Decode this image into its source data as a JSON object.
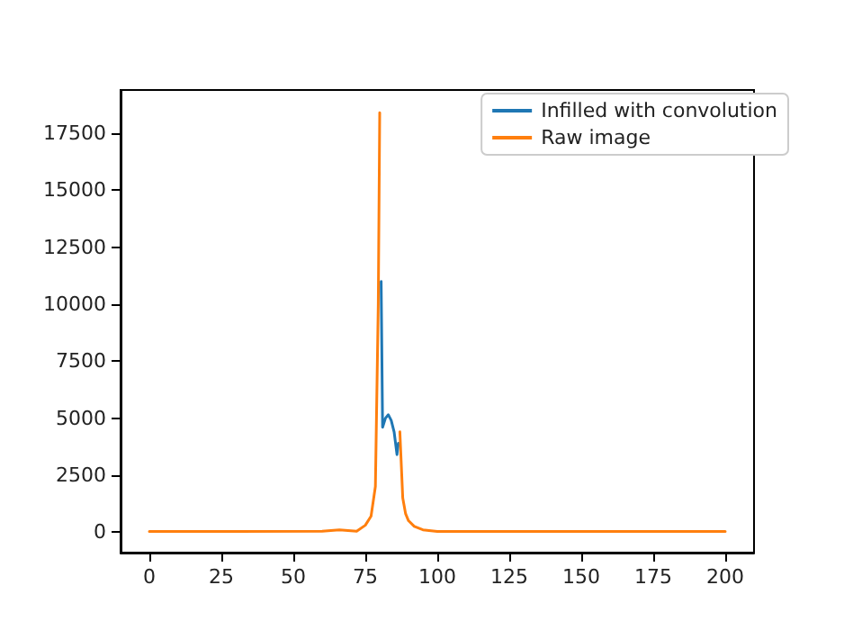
{
  "chart_data": {
    "type": "line",
    "xlim": [
      -10,
      210
    ],
    "ylim": [
      -900,
      19400
    ],
    "xticks": [
      0,
      25,
      50,
      75,
      100,
      125,
      150,
      175,
      200
    ],
    "yticks": [
      0,
      2500,
      5000,
      7500,
      10000,
      12500,
      15000,
      17500
    ],
    "grid": false,
    "legend": "top right",
    "marker": "none",
    "line_style": "solid",
    "series": [
      {
        "name": "Infilled with convolution",
        "color": "#1f77b4",
        "x": [
          80.5,
          81,
          82,
          83,
          84,
          85,
          86,
          86.5
        ],
        "values": [
          11000,
          4600,
          5000,
          5150,
          4900,
          4400,
          3400,
          3900
        ]
      },
      {
        "name": "Raw image",
        "color": "#ff7f0e",
        "x": [
          0,
          30,
          60,
          66,
          72,
          75,
          77,
          78.5,
          79.5,
          80,
          81,
          86,
          87,
          88,
          89,
          90,
          92,
          95,
          100,
          150,
          200
        ],
        "values": [
          30,
          30,
          40,
          100,
          40,
          300,
          700,
          2000,
          10000,
          18400,
          null,
          null,
          4400,
          1500,
          800,
          500,
          250,
          100,
          30,
          30,
          30
        ]
      }
    ]
  }
}
